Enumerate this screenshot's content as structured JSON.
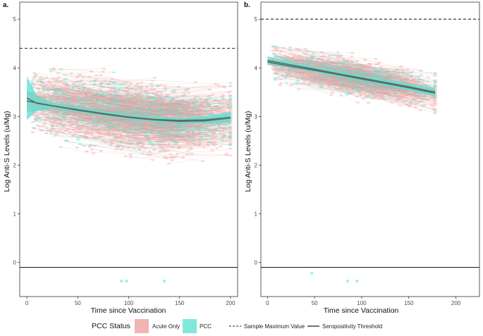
{
  "colors": {
    "acute_only": "#f28e8e",
    "pcc": "#5fe3d2",
    "trend_line": "#5a6b6a",
    "reference_line": "#222222"
  },
  "chart_data": [
    {
      "panel": "a.",
      "type": "line",
      "title": "",
      "xlabel": "Time since Vaccination",
      "ylabel": "Log Anti-S Levels (u/Mg)",
      "xlim": [
        -7,
        207
      ],
      "ylim": [
        -0.7,
        5.35
      ],
      "xticks": [
        0,
        50,
        100,
        150,
        200
      ],
      "yticks": [
        0,
        1,
        2,
        3,
        4,
        5
      ],
      "grid": false,
      "reference_lines": [
        {
          "name": "Sample Maximum Value",
          "y": 4.4,
          "style": "dashed"
        },
        {
          "name": "Seropositivity Threshold",
          "y": -0.1,
          "style": "solid"
        }
      ],
      "series": [
        {
          "name": "Acute Only",
          "description_of_cloud": "dense spaghetti of individual trajectories",
          "trend": {
            "x": [
              0,
              25,
              50,
              75,
              100,
              125,
              150,
              175,
              200
            ],
            "y": [
              3.32,
              3.22,
              3.13,
              3.05,
              2.98,
              2.93,
              2.9,
              2.91,
              2.97
            ]
          },
          "band_halfwidth": [
            0.22,
            0.07,
            0.05,
            0.04,
            0.04,
            0.04,
            0.05,
            0.06,
            0.08
          ]
        },
        {
          "name": "PCC",
          "trend": {
            "x": [
              0,
              10,
              25,
              50,
              75,
              100,
              125,
              150,
              175,
              200
            ],
            "y": [
              3.38,
              3.27,
              3.22,
              3.14,
              3.06,
              2.99,
              2.94,
              2.92,
              2.93,
              2.98
            ]
          },
          "band_halfwidth": [
            0.45,
            0.15,
            0.07,
            0.05,
            0.05,
            0.05,
            0.05,
            0.06,
            0.08,
            0.12
          ]
        }
      ],
      "outlier_points": [
        [
          93,
          -0.38
        ],
        [
          98,
          -0.38
        ],
        [
          135,
          -0.38
        ]
      ]
    },
    {
      "panel": "b.",
      "type": "line",
      "title": "",
      "xlabel": "Time since Vaccination",
      "ylabel": "Log Anti-S Levels (u/Mg)",
      "xlim": [
        -7,
        225
      ],
      "ylim": [
        -0.7,
        5.35
      ],
      "xticks": [
        0,
        50,
        100,
        150,
        200
      ],
      "yticks": [
        0,
        1,
        2,
        3,
        4,
        5
      ],
      "grid": false,
      "reference_lines": [
        {
          "name": "Sample Maximum Value",
          "y": 5.0,
          "style": "dashed"
        },
        {
          "name": "Seropositivity Threshold",
          "y": -0.1,
          "style": "solid"
        }
      ],
      "series": [
        {
          "name": "Acute Only",
          "trend": {
            "x": [
              0,
              25,
              50,
              75,
              100,
              125,
              150,
              178
            ],
            "y": [
              4.12,
              4.03,
              3.95,
              3.86,
              3.77,
              3.68,
              3.59,
              3.48
            ]
          },
          "band_halfwidth": [
            0.06,
            0.04,
            0.03,
            0.03,
            0.03,
            0.04,
            0.05,
            0.07
          ]
        },
        {
          "name": "PCC",
          "trend": {
            "x": [
              0,
              25,
              50,
              75,
              100,
              125,
              150,
              178
            ],
            "y": [
              4.15,
              4.06,
              3.97,
              3.88,
              3.79,
              3.7,
              3.61,
              3.5
            ]
          },
          "band_halfwidth": [
            0.09,
            0.06,
            0.05,
            0.05,
            0.05,
            0.06,
            0.07,
            0.09
          ]
        }
      ],
      "outlier_points": [
        [
          47,
          -0.22
        ],
        [
          85,
          -0.38
        ],
        [
          95,
          -0.38
        ]
      ]
    }
  ],
  "legend": {
    "title": "PCC Status",
    "placement": "bottom",
    "items": [
      {
        "label": "Acute Only",
        "kind": "fill",
        "color": "#f4b3b3"
      },
      {
        "label": "PCC",
        "kind": "fill",
        "color": "#7ee8da"
      },
      {
        "label": "Sample Maximum Value",
        "kind": "dashed"
      },
      {
        "label": "Seropositivity Threshold",
        "kind": "solid"
      }
    ]
  }
}
